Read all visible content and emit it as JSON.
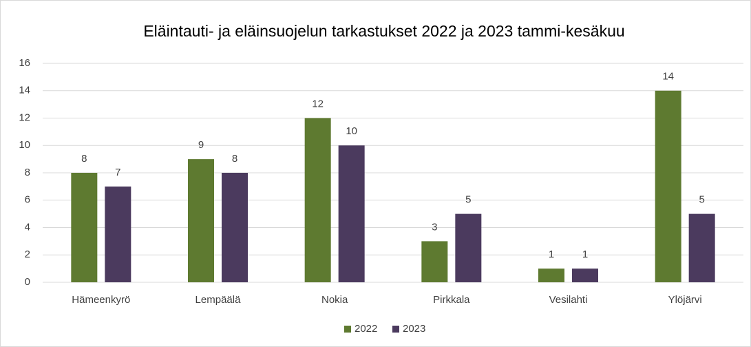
{
  "chart_data": {
    "type": "bar",
    "title": "Eläintauti- ja eläinsuojelun tarkastukset 2022 ja 2023 tammi-kesäkuu",
    "categories": [
      "Hämeenkyrö",
      "Lempäälä",
      "Nokia",
      "Pirkkala",
      "Vesilahti",
      "Ylöjärvi"
    ],
    "series": [
      {
        "name": "2022",
        "color": "#5e7a30",
        "values": [
          8,
          9,
          12,
          3,
          1,
          14
        ]
      },
      {
        "name": "2023",
        "color": "#4b3a5e",
        "values": [
          7,
          8,
          10,
          5,
          1,
          5
        ]
      }
    ],
    "ylim": [
      0,
      16
    ],
    "yticks": [
      0,
      2,
      4,
      6,
      8,
      10,
      12,
      14,
      16
    ],
    "grid": true,
    "legend": "bottom"
  }
}
